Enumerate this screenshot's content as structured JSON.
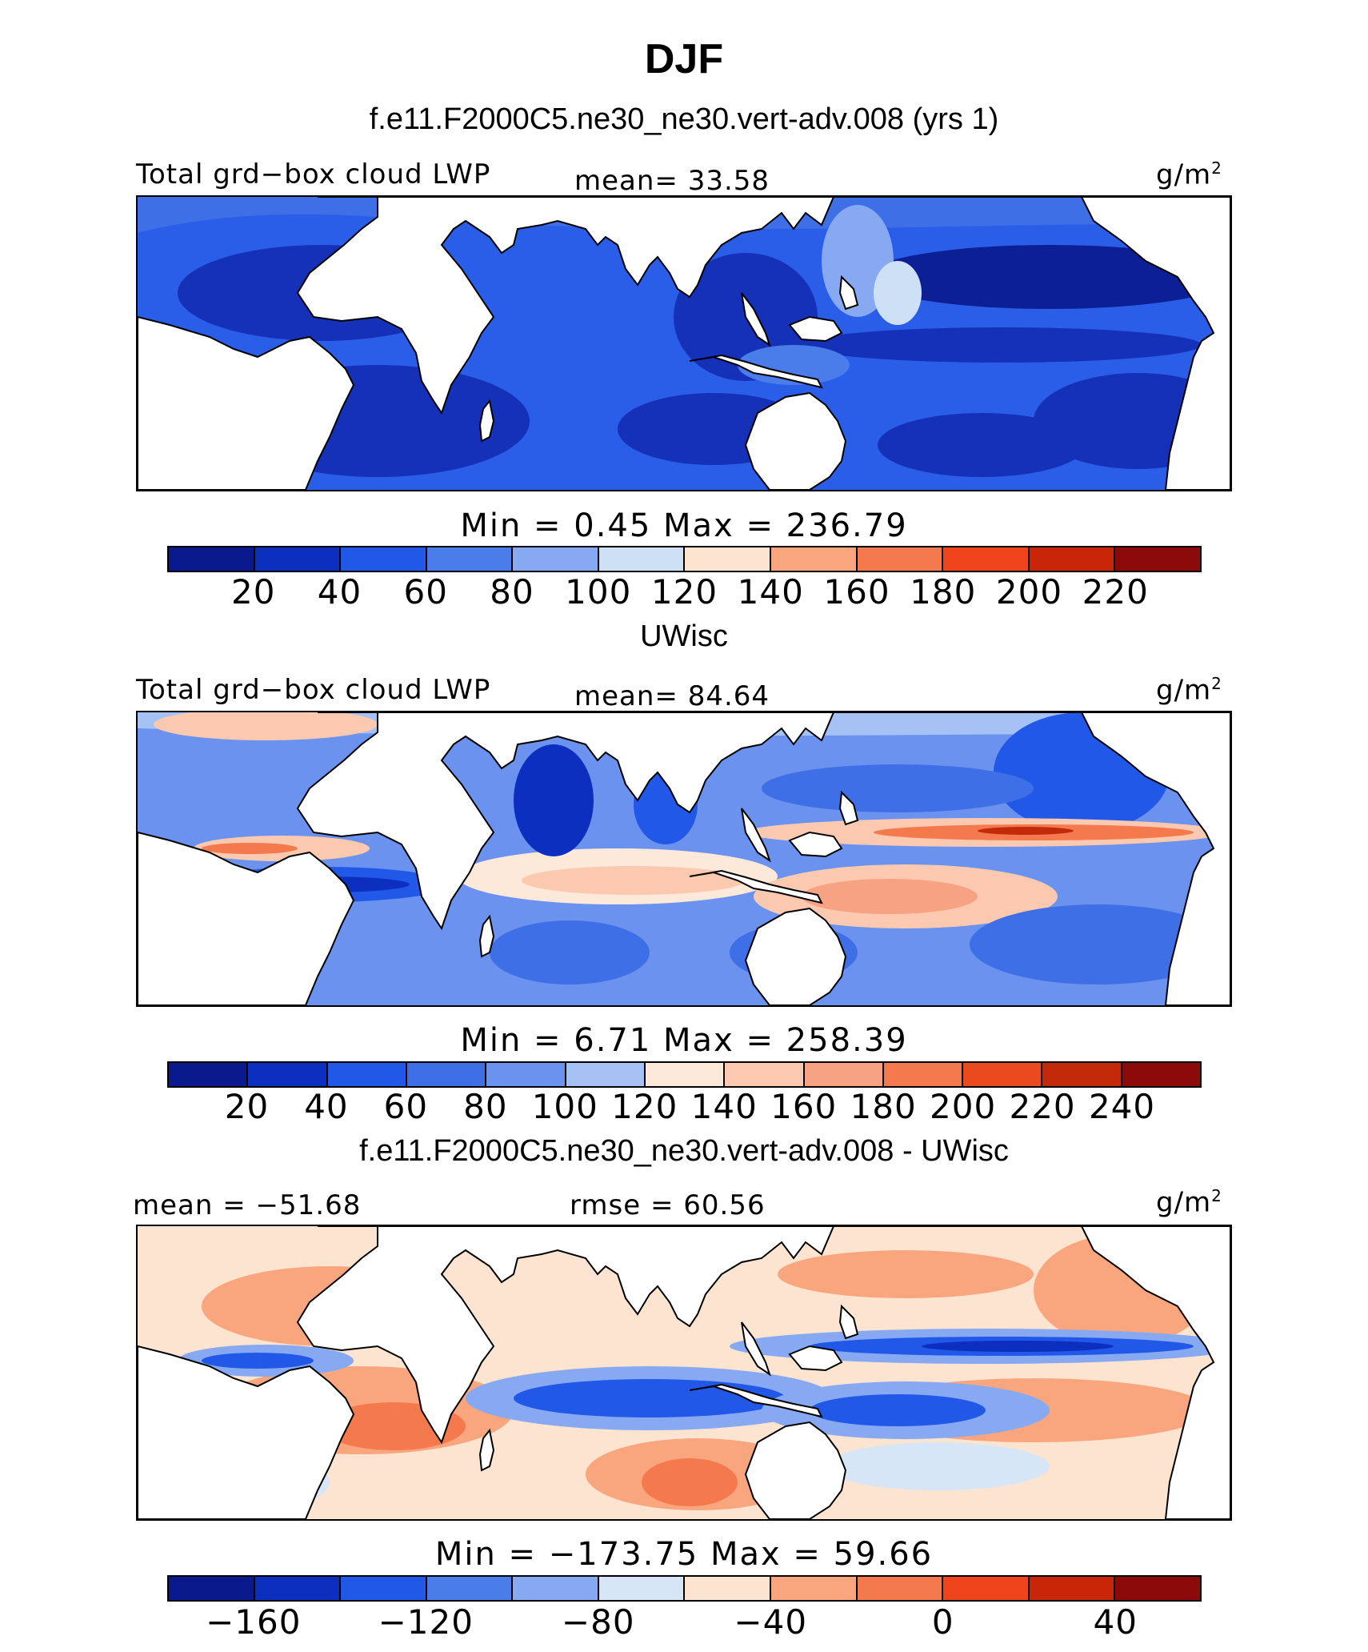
{
  "title": "DJF",
  "panels": [
    {
      "subtitle": "f.e11.F2000C5.ne30_ne30.vert-adv.008 (yrs 1)",
      "left_label": "Total grd−box cloud LWP",
      "center_label": "mean=  33.58",
      "units_base": "g/m",
      "units_exp": "2",
      "minmax": "Min =    0.45  Max = 236.79",
      "colorbar": {
        "colors": [
          "#0a1a8c",
          "#0c2fbf",
          "#2158e8",
          "#4a7de9",
          "#86a9f2",
          "#cde0f6",
          "#fde4d0",
          "#f9a67e",
          "#f47a4e",
          "#f0441c",
          "#c82509",
          "#8c0a0a"
        ],
        "ticks": [
          "20",
          "40",
          "60",
          "80",
          "100",
          "120",
          "140",
          "160",
          "180",
          "200",
          "220"
        ]
      }
    },
    {
      "subtitle": "UWisc",
      "left_label": "Total grd−box cloud LWP",
      "center_label": "mean=  84.64",
      "units_base": "g/m",
      "units_exp": "2",
      "minmax": "Min =    6.71  Max = 258.39",
      "colorbar": {
        "colors": [
          "#0a1a8c",
          "#0c2fbf",
          "#2158e8",
          "#3f6fe6",
          "#6a92ee",
          "#a6c2f5",
          "#fde9da",
          "#fbc9b0",
          "#f7a283",
          "#f47a4e",
          "#ea4a1e",
          "#c22a0a",
          "#8c0a0a"
        ],
        "ticks": [
          "20",
          "40",
          "60",
          "80",
          "100",
          "120",
          "140",
          "160",
          "180",
          "200",
          "220",
          "240"
        ]
      }
    },
    {
      "subtitle": "f.e11.F2000C5.ne30_ne30.vert-adv.008 - UWisc",
      "left_label": "mean = −51.68",
      "center_label": "rmse =  60.56",
      "units_base": "g/m",
      "units_exp": "2",
      "minmax": "Min = −173.75  Max =   59.66",
      "colorbar": {
        "colors": [
          "#0a1a8c",
          "#0c2fbf",
          "#2158e8",
          "#4a7de9",
          "#86a9f2",
          "#d6e6f7",
          "#fde4d0",
          "#f9a67e",
          "#f47a4e",
          "#f0441c",
          "#c82509",
          "#8c0a0a"
        ],
        "ticks": [
          "−160",
          "−120",
          "−80",
          "−40",
          "0",
          "40"
        ]
      }
    }
  ]
}
